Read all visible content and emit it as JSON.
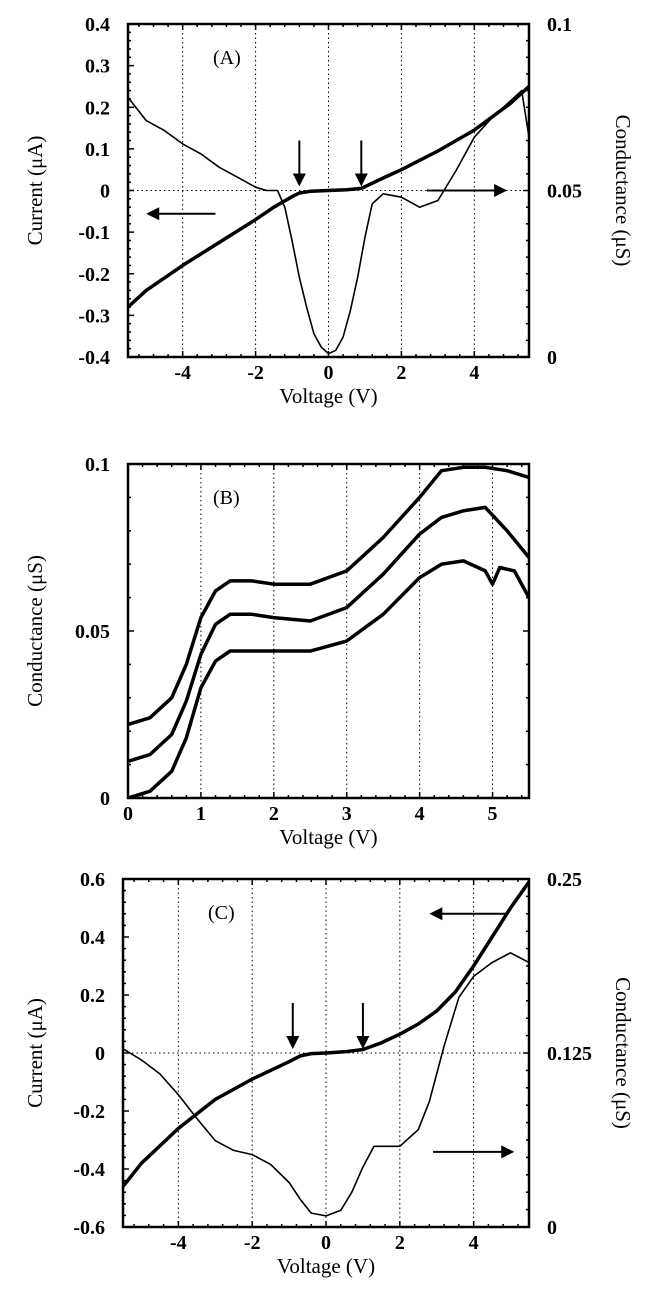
{
  "chart_data": [
    {
      "type": "line",
      "panel_label": "(A)",
      "xlabel": "Voltage (V)",
      "ylabel": "Current (μA)",
      "ylabel_right": "Conductance (μS)",
      "xlim": [
        -5.5,
        5.5
      ],
      "ylim": [
        -0.4,
        0.4
      ],
      "ylim_right": [
        0,
        0.1
      ],
      "x_ticks": [
        -4,
        -2,
        0,
        2,
        4
      ],
      "x_tick_labels": [
        "-4",
        "-2",
        "0",
        "2",
        "4"
      ],
      "y_ticks": [
        0.4,
        0.3,
        0.2,
        0.1,
        0,
        -0.1,
        -0.2,
        -0.3,
        -0.4
      ],
      "y_tick_labels": [
        "0.4",
        "0.3",
        "0.2",
        "0.1",
        "0",
        "-0.1",
        "-0.2",
        "-0.3",
        "-0.4"
      ],
      "y_right_ticks": [
        0.1,
        0.05,
        0
      ],
      "y_right_tick_labels": [
        "0.1",
        "0.05",
        "0"
      ],
      "vertical_grid": "dotted at x ticks",
      "zero_line": "dotted at y = 0",
      "series": [
        {
          "axis": "left",
          "style": "thick",
          "x": [
            -5.5,
            -5,
            -4,
            -3,
            -2,
            -1.5,
            -1,
            -0.8,
            -0.5,
            0,
            0.5,
            0.9,
            1.5,
            2,
            3,
            4,
            5,
            5.5
          ],
          "y": [
            -0.28,
            -0.24,
            -0.18,
            -0.125,
            -0.07,
            -0.04,
            -0.015,
            -0.006,
            -0.002,
            0,
            0.002,
            0.005,
            0.03,
            0.05,
            0.095,
            0.145,
            0.21,
            0.25
          ]
        },
        {
          "axis": "right",
          "style": "thin",
          "x": [
            -5.5,
            -5,
            -4.5,
            -4,
            -3.5,
            -3,
            -2.5,
            -2,
            -1.7,
            -1.4,
            -1.2,
            -1,
            -0.8,
            -0.6,
            -0.4,
            -0.2,
            0,
            0.2,
            0.4,
            0.6,
            0.8,
            1,
            1.2,
            1.5,
            2,
            2.5,
            3,
            3.5,
            4,
            4.5,
            5,
            5.3,
            5.5
          ],
          "y": [
            0.078,
            0.071,
            0.068,
            0.064,
            0.061,
            0.057,
            0.054,
            0.051,
            0.05,
            0.05,
            0.045,
            0.035,
            0.024,
            0.015,
            0.007,
            0.003,
            0.001,
            0.002,
            0.006,
            0.014,
            0.024,
            0.036,
            0.046,
            0.049,
            0.048,
            0.045,
            0.047,
            0.056,
            0.066,
            0.072,
            0.077,
            0.08,
            0.066
          ]
        }
      ],
      "annotations": [
        {
          "type": "down-arrow",
          "x": -0.8,
          "note": "marks onset of gap"
        },
        {
          "type": "down-arrow",
          "x": 0.9,
          "note": "marks onset of gap"
        },
        {
          "type": "left-arrow",
          "x_from": -3.1,
          "x_to": -5.0,
          "y_right": 0.043,
          "note": "points to left axis"
        },
        {
          "type": "right-arrow",
          "x_from": 2.7,
          "x_to": 4.9,
          "y_right": 0.05,
          "note": "points to right axis"
        }
      ]
    },
    {
      "type": "line",
      "panel_label": "(B)",
      "xlabel": "Voltage (V)",
      "ylabel": "Conductance (μS)",
      "xlim": [
        0,
        5.5
      ],
      "ylim": [
        0,
        0.1
      ],
      "x_ticks": [
        0,
        1,
        2,
        3,
        4,
        5
      ],
      "x_tick_labels": [
        "0",
        "1",
        "2",
        "3",
        "4",
        "5"
      ],
      "y_ticks": [
        0.1,
        0.05,
        0
      ],
      "y_tick_labels": [
        "0.1",
        "0.05",
        "0"
      ],
      "vertical_grid": "dotted at x ticks",
      "series": [
        {
          "style": "thick",
          "x": [
            0,
            0.3,
            0.6,
            0.8,
            1.0,
            1.2,
            1.4,
            1.7,
            2.0,
            2.5,
            3.0,
            3.5,
            4.0,
            4.3,
            4.6,
            4.9,
            5.2,
            5.5
          ],
          "y": [
            0.022,
            0.024,
            0.03,
            0.04,
            0.054,
            0.062,
            0.065,
            0.065,
            0.064,
            0.064,
            0.068,
            0.078,
            0.09,
            0.098,
            0.099,
            0.099,
            0.098,
            0.096
          ]
        },
        {
          "style": "thick",
          "x": [
            0,
            0.3,
            0.6,
            0.8,
            1.0,
            1.2,
            1.4,
            1.7,
            2.0,
            2.5,
            3.0,
            3.5,
            4.0,
            4.3,
            4.6,
            4.9,
            5.2,
            5.5
          ],
          "y": [
            0.011,
            0.013,
            0.019,
            0.029,
            0.043,
            0.052,
            0.055,
            0.055,
            0.054,
            0.053,
            0.057,
            0.067,
            0.079,
            0.084,
            0.086,
            0.087,
            0.08,
            0.072
          ]
        },
        {
          "style": "thick",
          "x": [
            0,
            0.3,
            0.6,
            0.8,
            1.0,
            1.2,
            1.4,
            1.7,
            2.0,
            2.5,
            3.0,
            3.5,
            4.0,
            4.3,
            4.6,
            4.9,
            5.0,
            5.1,
            5.3,
            5.5
          ],
          "y": [
            0.0,
            0.002,
            0.008,
            0.018,
            0.033,
            0.041,
            0.044,
            0.044,
            0.044,
            0.044,
            0.047,
            0.055,
            0.066,
            0.07,
            0.071,
            0.068,
            0.064,
            0.069,
            0.068,
            0.06
          ]
        }
      ]
    },
    {
      "type": "line",
      "panel_label": "(C)",
      "xlabel": "Voltage (V)",
      "ylabel": "Current (μA)",
      "ylabel_right": "Conductance (μS)",
      "xlim": [
        -5.5,
        5.5
      ],
      "ylim": [
        -0.6,
        0.6
      ],
      "ylim_right": [
        0,
        0.25
      ],
      "x_ticks": [
        -4,
        -2,
        0,
        2,
        4
      ],
      "x_tick_labels": [
        "-4",
        "-2",
        "0",
        "2",
        "4"
      ],
      "y_ticks": [
        0.6,
        0.4,
        0.2,
        0,
        -0.2,
        -0.4,
        -0.6
      ],
      "y_tick_labels": [
        "0.6",
        "0.4",
        "0.2",
        "0",
        "-0.2",
        "-0.4",
        "-0.6"
      ],
      "y_right_ticks": [
        0.25,
        0.125,
        0
      ],
      "y_right_tick_labels": [
        "0.25",
        "0.125",
        "0"
      ],
      "vertical_grid": "dotted at x ticks",
      "zero_line": "dotted at y = 0",
      "series": [
        {
          "axis": "left",
          "style": "thick",
          "x": [
            -5.5,
            -5,
            -4,
            -3,
            -2,
            -1.5,
            -1,
            -0.7,
            -0.4,
            0,
            0.5,
            1,
            1.5,
            2,
            2.5,
            3,
            3.5,
            4,
            4.5,
            5,
            5.5
          ],
          "y": [
            -0.46,
            -0.38,
            -0.26,
            -0.16,
            -0.09,
            -0.06,
            -0.03,
            -0.01,
            -0.002,
            0,
            0.004,
            0.012,
            0.035,
            0.065,
            0.1,
            0.145,
            0.21,
            0.3,
            0.4,
            0.5,
            0.59
          ]
        },
        {
          "axis": "right",
          "style": "thin",
          "x": [
            -5.5,
            -5,
            -4.5,
            -4,
            -3.5,
            -3,
            -2.5,
            -2,
            -1.5,
            -1,
            -0.7,
            -0.4,
            0,
            0.4,
            0.7,
            1.0,
            1.3,
            1.5,
            2,
            2.5,
            2.8,
            3.2,
            3.6,
            4,
            4.5,
            5,
            5.5
          ],
          "y": [
            0.128,
            0.12,
            0.11,
            0.095,
            0.078,
            0.062,
            0.055,
            0.052,
            0.045,
            0.032,
            0.02,
            0.01,
            0.008,
            0.012,
            0.025,
            0.043,
            0.058,
            0.058,
            0.058,
            0.07,
            0.09,
            0.13,
            0.165,
            0.18,
            0.19,
            0.197,
            0.19
          ]
        }
      ],
      "annotations": [
        {
          "type": "down-arrow",
          "x": -0.9,
          "note": "marks onset of gap"
        },
        {
          "type": "down-arrow",
          "x": 1.0,
          "note": "marks onset of gap"
        },
        {
          "type": "left-arrow",
          "x_from": 4.9,
          "x_to": 2.8,
          "y_right": 0.225,
          "note": "points to left axis"
        },
        {
          "type": "right-arrow",
          "x_from": 2.9,
          "x_to": 5.1,
          "y_right": 0.054,
          "note": "points to right axis"
        }
      ]
    }
  ]
}
